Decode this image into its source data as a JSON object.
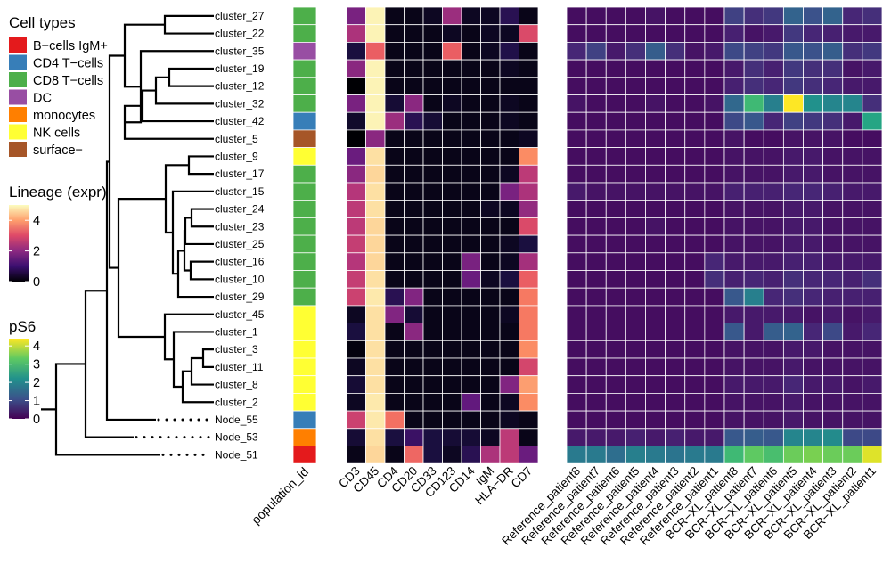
{
  "chart_data": {
    "type": "heatmap",
    "legends": {
      "cell_types": {
        "title": "Cell types",
        "items": [
          {
            "label": "B−cells IgM+",
            "color": "#E41A1C"
          },
          {
            "label": "CD4 T−cells",
            "color": "#377EB8"
          },
          {
            "label": "CD8 T−cells",
            "color": "#4DAF4A"
          },
          {
            "label": "DC",
            "color": "#984EA3"
          },
          {
            "label": "monocytes",
            "color": "#FF7F00"
          },
          {
            "label": "NK cells",
            "color": "#FFFF33"
          },
          {
            "label": "surface−",
            "color": "#A65628"
          }
        ]
      },
      "lineage": {
        "title": "Lineage (expr)",
        "ticks": [
          "4",
          "2",
          "0"
        ],
        "range": [
          0,
          5
        ],
        "palette": "magma"
      },
      "ps6": {
        "title": "pS6",
        "ticks": [
          "4",
          "3",
          "2",
          "1",
          "0"
        ],
        "range": [
          0,
          4.4
        ],
        "palette": "viridis"
      }
    },
    "rows": [
      "cluster_27",
      "cluster_22",
      "cluster_35",
      "cluster_19",
      "cluster_12",
      "cluster_32",
      "cluster_42",
      "cluster_5",
      "cluster_9",
      "cluster_17",
      "cluster_15",
      "cluster_24",
      "cluster_23",
      "cluster_25",
      "cluster_16",
      "cluster_10",
      "cluster_29",
      "cluster_45",
      "cluster_1",
      "cluster_3",
      "cluster_11",
      "cluster_8",
      "cluster_2",
      "Node_55",
      "Node_53",
      "Node_51"
    ],
    "population_id_label": "population_id",
    "population_id": [
      "CD8 T−cells",
      "CD8 T−cells",
      "DC",
      "CD8 T−cells",
      "CD8 T−cells",
      "CD8 T−cells",
      "CD4 T−cells",
      "surface−",
      "NK cells",
      "CD8 T−cells",
      "CD8 T−cells",
      "CD8 T−cells",
      "CD8 T−cells",
      "CD8 T−cells",
      "CD8 T−cells",
      "CD8 T−cells",
      "CD8 T−cells",
      "NK cells",
      "NK cells",
      "NK cells",
      "NK cells",
      "NK cells",
      "NK cells",
      "CD4 T−cells",
      "monocytes",
      "B−cells IgM+"
    ],
    "lineage_markers": [
      "CD3",
      "CD45",
      "CD4",
      "CD20",
      "CD33",
      "CD123",
      "CD14",
      "IgM",
      "HLA−DR",
      "CD7"
    ],
    "lineage_values": [
      [
        1.8,
        4.9,
        0.2,
        0.2,
        0.3,
        2.2,
        0.3,
        0.3,
        0.8,
        0.2
      ],
      [
        2.4,
        4.9,
        0.2,
        0.2,
        0.2,
        0.3,
        0.2,
        0.3,
        0.3,
        3.0
      ],
      [
        0.6,
        3.3,
        0.2,
        0.2,
        0.2,
        3.3,
        0.2,
        0.3,
        0.7,
        0.2
      ],
      [
        2.0,
        4.9,
        0.2,
        0.2,
        0.2,
        0.2,
        0.2,
        0.2,
        0.3,
        0.2
      ],
      [
        0.0,
        4.9,
        0.2,
        0.2,
        0.2,
        0.2,
        0.2,
        0.2,
        0.2,
        0.2
      ],
      [
        1.8,
        4.9,
        0.5,
        2.0,
        0.2,
        0.3,
        0.2,
        0.2,
        0.3,
        0.2
      ],
      [
        0.4,
        4.9,
        2.2,
        0.8,
        0.5,
        0.2,
        0.2,
        0.2,
        0.3,
        0.2
      ],
      [
        0.0,
        2.0,
        0.2,
        0.2,
        0.2,
        0.2,
        0.2,
        0.2,
        0.2,
        0.3
      ],
      [
        1.6,
        4.7,
        0.2,
        0.2,
        0.2,
        0.2,
        0.2,
        0.2,
        0.2,
        3.8
      ],
      [
        2.0,
        4.6,
        0.2,
        0.2,
        0.2,
        0.2,
        0.2,
        0.2,
        0.3,
        2.6
      ],
      [
        2.5,
        4.7,
        0.2,
        0.2,
        0.2,
        0.2,
        0.2,
        0.2,
        1.8,
        2.4
      ],
      [
        2.6,
        4.7,
        0.2,
        0.2,
        0.2,
        0.2,
        0.2,
        0.3,
        0.3,
        2.1
      ],
      [
        2.6,
        4.6,
        0.2,
        0.2,
        0.2,
        0.2,
        0.2,
        0.2,
        0.2,
        3.0
      ],
      [
        2.7,
        4.6,
        0.2,
        0.2,
        0.2,
        0.2,
        0.2,
        0.2,
        0.3,
        0.6
      ],
      [
        2.5,
        4.6,
        0.2,
        0.2,
        0.2,
        0.2,
        1.8,
        0.2,
        0.3,
        2.3
      ],
      [
        2.7,
        4.7,
        0.2,
        0.2,
        0.2,
        0.2,
        1.6,
        0.3,
        0.6,
        3.3
      ],
      [
        2.8,
        4.8,
        0.8,
        1.9,
        0.2,
        0.2,
        0.2,
        0.2,
        0.2,
        3.6
      ],
      [
        0.3,
        4.7,
        1.9,
        0.5,
        0.2,
        0.2,
        0.2,
        0.2,
        0.3,
        3.6
      ],
      [
        0.6,
        4.7,
        0.2,
        2.0,
        0.2,
        0.2,
        0.2,
        0.2,
        0.2,
        3.6
      ],
      [
        0.1,
        4.7,
        0.2,
        0.2,
        0.2,
        0.2,
        0.2,
        0.2,
        0.2,
        3.8
      ],
      [
        0.3,
        4.7,
        0.2,
        0.2,
        0.2,
        0.2,
        0.2,
        0.2,
        0.2,
        2.9
      ],
      [
        0.5,
        4.7,
        0.2,
        0.2,
        0.2,
        0.2,
        0.2,
        0.2,
        1.9,
        4.0
      ],
      [
        0.3,
        4.8,
        0.2,
        0.2,
        0.2,
        0.2,
        1.5,
        0.2,
        0.3,
        3.8
      ],
      [
        2.8,
        4.8,
        3.5,
        0.2,
        0.2,
        0.2,
        0.2,
        0.2,
        0.3,
        0.2
      ],
      [
        0.5,
        4.7,
        0.6,
        1.0,
        0.6,
        0.5,
        0.5,
        0.3,
        2.6,
        0.2
      ],
      [
        0.2,
        4.6,
        0.2,
        3.4,
        0.6,
        0.3,
        0.8,
        2.4,
        2.6,
        1.6
      ]
    ],
    "ps6_conditions": [
      "Reference_patient8",
      "Reference_patient7",
      "Reference_patient6",
      "Reference_patient5",
      "Reference_patient4",
      "Reference_patient3",
      "Reference_patient2",
      "Reference_patient1",
      "BCR−XL_patient8",
      "BCR−XL_patient7",
      "BCR−XL_patient6",
      "BCR−XL_patient5",
      "BCR−XL_patient4",
      "BCR−XL_patient3",
      "BCR−XL_patient2",
      "BCR−XL_patient1"
    ],
    "ps6_values": [
      [
        0.2,
        0.2,
        0.2,
        0.2,
        0.3,
        0.2,
        0.2,
        0.2,
        0.9,
        0.7,
        0.8,
        1.4,
        1.1,
        1.4,
        0.6,
        0.7
      ],
      [
        0.2,
        0.2,
        0.2,
        0.2,
        0.2,
        0.2,
        0.2,
        0.2,
        0.5,
        0.3,
        0.4,
        0.8,
        0.6,
        0.5,
        0.4,
        0.4
      ],
      [
        0.6,
        0.9,
        0.4,
        0.7,
        1.3,
        0.7,
        0.3,
        0.4,
        1.0,
        0.9,
        0.8,
        1.2,
        1.1,
        1.3,
        0.7,
        0.8
      ],
      [
        0.2,
        0.2,
        0.2,
        0.2,
        0.2,
        0.2,
        0.2,
        0.2,
        0.4,
        0.7,
        0.5,
        0.8,
        0.7,
        0.7,
        0.3,
        0.4
      ],
      [
        0.2,
        0.2,
        0.2,
        0.2,
        0.2,
        0.2,
        0.2,
        0.2,
        0.5,
        0.7,
        0.6,
        0.8,
        0.7,
        0.6,
        0.4,
        0.4
      ],
      [
        0.3,
        0.2,
        0.2,
        0.2,
        0.3,
        0.2,
        0.2,
        0.3,
        1.5,
        3.0,
        1.9,
        4.4,
        2.2,
        2.0,
        2.0,
        0.7
      ],
      [
        0.2,
        0.2,
        0.2,
        0.2,
        0.2,
        0.2,
        0.2,
        0.2,
        1.0,
        1.2,
        0.6,
        0.9,
        0.8,
        0.7,
        0.4,
        2.6
      ],
      [
        0.2,
        0.2,
        0.2,
        0.2,
        0.2,
        0.2,
        0.2,
        0.2,
        0.3,
        0.2,
        0.2,
        0.3,
        0.3,
        0.3,
        0.2,
        0.2
      ],
      [
        0.2,
        0.2,
        0.2,
        0.2,
        0.2,
        0.2,
        0.2,
        0.2,
        0.3,
        0.3,
        0.3,
        0.4,
        0.4,
        0.3,
        0.3,
        0.3
      ],
      [
        0.2,
        0.2,
        0.2,
        0.2,
        0.2,
        0.2,
        0.2,
        0.2,
        0.3,
        0.3,
        0.3,
        0.4,
        0.4,
        0.3,
        0.3,
        0.3
      ],
      [
        0.4,
        0.3,
        0.3,
        0.3,
        0.3,
        0.3,
        0.3,
        0.3,
        0.5,
        0.5,
        0.5,
        0.6,
        0.6,
        0.5,
        0.4,
        0.4
      ],
      [
        0.2,
        0.2,
        0.2,
        0.2,
        0.2,
        0.2,
        0.2,
        0.2,
        0.3,
        0.3,
        0.3,
        0.4,
        0.4,
        0.3,
        0.3,
        0.3
      ],
      [
        0.2,
        0.2,
        0.2,
        0.2,
        0.3,
        0.2,
        0.2,
        0.2,
        0.3,
        0.3,
        0.3,
        0.4,
        0.4,
        0.3,
        0.3,
        0.3
      ],
      [
        0.2,
        0.2,
        0.2,
        0.2,
        0.2,
        0.2,
        0.2,
        0.2,
        0.3,
        0.3,
        0.3,
        0.4,
        0.4,
        0.3,
        0.3,
        0.3
      ],
      [
        0.2,
        0.2,
        0.2,
        0.2,
        0.2,
        0.2,
        0.2,
        0.6,
        0.4,
        0.4,
        0.4,
        0.5,
        0.5,
        0.4,
        0.4,
        0.4
      ],
      [
        0.2,
        0.2,
        0.2,
        0.2,
        0.2,
        0.2,
        0.2,
        0.7,
        0.5,
        0.6,
        0.5,
        0.7,
        0.6,
        0.6,
        0.5,
        0.7
      ],
      [
        0.2,
        0.2,
        0.2,
        0.2,
        0.2,
        0.2,
        0.2,
        0.2,
        1.2,
        1.9,
        0.6,
        0.7,
        0.6,
        0.5,
        0.5,
        0.5
      ],
      [
        0.2,
        0.2,
        0.2,
        0.2,
        0.2,
        0.2,
        0.2,
        0.2,
        0.4,
        0.4,
        0.4,
        0.4,
        0.3,
        0.4,
        0.3,
        0.4
      ],
      [
        0.2,
        0.2,
        0.2,
        0.2,
        0.2,
        0.2,
        0.2,
        0.2,
        1.2,
        0.4,
        1.3,
        1.4,
        0.6,
        1.0,
        0.4,
        0.6
      ],
      [
        0.2,
        0.2,
        0.2,
        0.2,
        0.2,
        0.2,
        0.2,
        0.2,
        0.3,
        0.3,
        0.3,
        0.4,
        0.4,
        0.3,
        0.3,
        0.3
      ],
      [
        0.2,
        0.2,
        0.2,
        0.2,
        0.2,
        0.2,
        0.2,
        0.2,
        0.3,
        0.3,
        0.3,
        0.4,
        0.3,
        0.3,
        0.3,
        0.3
      ],
      [
        0.2,
        0.2,
        0.2,
        0.2,
        0.2,
        0.2,
        0.2,
        0.2,
        0.4,
        0.4,
        0.4,
        0.6,
        0.4,
        0.4,
        0.3,
        0.4
      ],
      [
        0.2,
        0.2,
        0.2,
        0.2,
        0.2,
        0.2,
        0.2,
        0.2,
        0.3,
        0.3,
        0.3,
        0.4,
        0.3,
        0.3,
        0.3,
        0.3
      ],
      [
        0.2,
        0.2,
        0.2,
        0.2,
        0.2,
        0.2,
        0.2,
        0.2,
        0.3,
        0.3,
        0.3,
        0.4,
        0.3,
        0.3,
        0.3,
        0.3
      ],
      [
        0.4,
        0.4,
        0.4,
        0.5,
        0.4,
        0.5,
        0.4,
        0.4,
        1.2,
        1.3,
        1.2,
        2.0,
        2.0,
        2.1,
        1.0,
        1.0
      ],
      [
        1.8,
        1.8,
        1.6,
        1.9,
        1.8,
        1.7,
        1.8,
        1.8,
        3.0,
        3.3,
        3.1,
        3.4,
        3.5,
        3.4,
        3.4,
        4.2
      ]
    ]
  }
}
